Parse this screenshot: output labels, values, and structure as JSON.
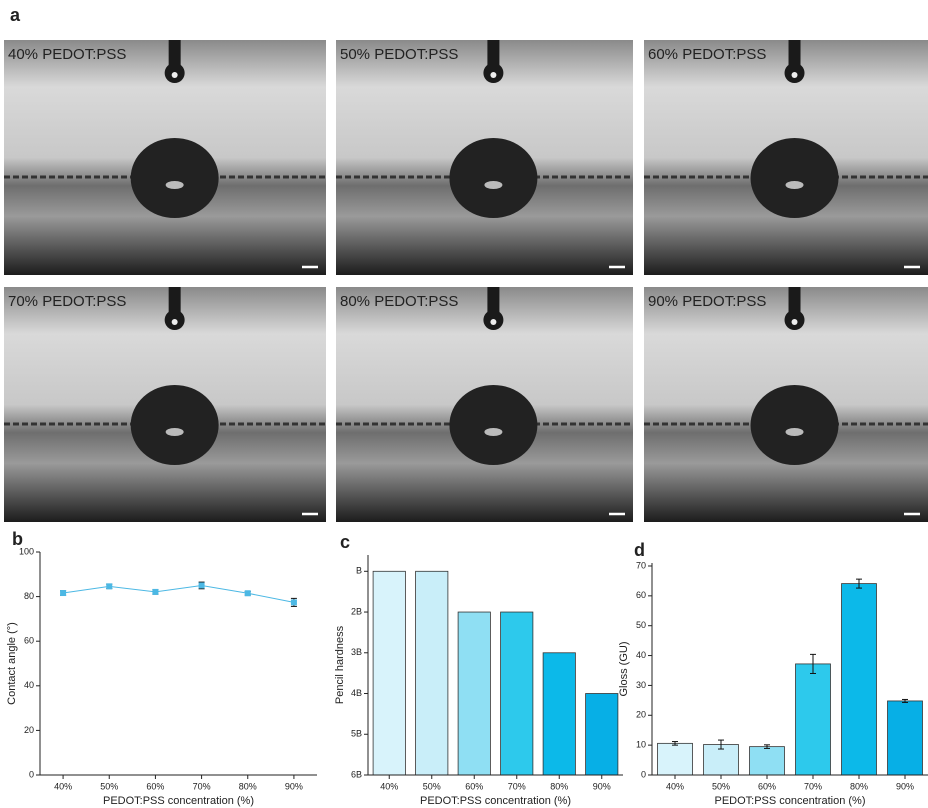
{
  "panel_a": {
    "label": "a",
    "images": [
      "40% PEDOT:PSS",
      "50% PEDOT:PSS",
      "60% PEDOT:PSS",
      "70% PEDOT:PSS",
      "80% PEDOT:PSS",
      "90% PEDOT:PSS"
    ]
  },
  "chart_data": [
    {
      "type": "line",
      "panel_label": "b",
      "x_label": "PEDOT:PSS concentration (%)",
      "y_label": "Contact angle (°)",
      "categories": [
        "40%",
        "50%",
        "60%",
        "70%",
        "80%",
        "90%"
      ],
      "series": [
        {
          "color": "#4cb8e4",
          "values": [
            81.6,
            84.6,
            82.1,
            85.0,
            81.5,
            77.4
          ],
          "errors": [
            1.0,
            1.0,
            1.0,
            1.5,
            0.8,
            1.8
          ]
        }
      ],
      "ylim": [
        0,
        100
      ],
      "yticks": [
        0,
        20,
        40,
        60,
        80,
        100
      ]
    },
    {
      "type": "bar",
      "panel_label": "c",
      "x_label": "PEDOT:PSS concentration (%)",
      "y_label": "Pencil hardness",
      "categories": [
        "40%",
        "50%",
        "60%",
        "70%",
        "80%",
        "90%"
      ],
      "values": [
        5,
        5,
        4,
        4,
        3,
        2
      ],
      "colors": [
        "#d8f3fb",
        "#c9eef9",
        "#8fdff3",
        "#2dc9ec",
        "#0cb9e9",
        "#07afe6"
      ],
      "ylim": [
        0,
        5.4
      ],
      "yticks": [
        {
          "value": 0,
          "label": "6B"
        },
        {
          "value": 1,
          "label": "5B"
        },
        {
          "value": 2,
          "label": "4B"
        },
        {
          "value": 3,
          "label": "3B"
        },
        {
          "value": 4,
          "label": "2B"
        },
        {
          "value": 5,
          "label": "B"
        }
      ]
    },
    {
      "type": "bar",
      "panel_label": "d",
      "x_label": "PEDOT:PSS concentration (%)",
      "y_label": "Gloss (GU)",
      "categories": [
        "40%",
        "50%",
        "60%",
        "70%",
        "80%",
        "90%"
      ],
      "values": [
        10.6,
        10.2,
        9.5,
        37.2,
        64.1,
        24.8
      ],
      "errors": [
        0.6,
        1.5,
        0.6,
        3.2,
        1.5,
        0.5
      ],
      "colors": [
        "#d8f3fb",
        "#c9eef9",
        "#8fdff3",
        "#2dc9ec",
        "#0cb9e9",
        "#07afe6"
      ],
      "ylim": [
        0,
        71
      ],
      "yticks": [
        0,
        10,
        20,
        30,
        40,
        50,
        60,
        70
      ]
    }
  ]
}
